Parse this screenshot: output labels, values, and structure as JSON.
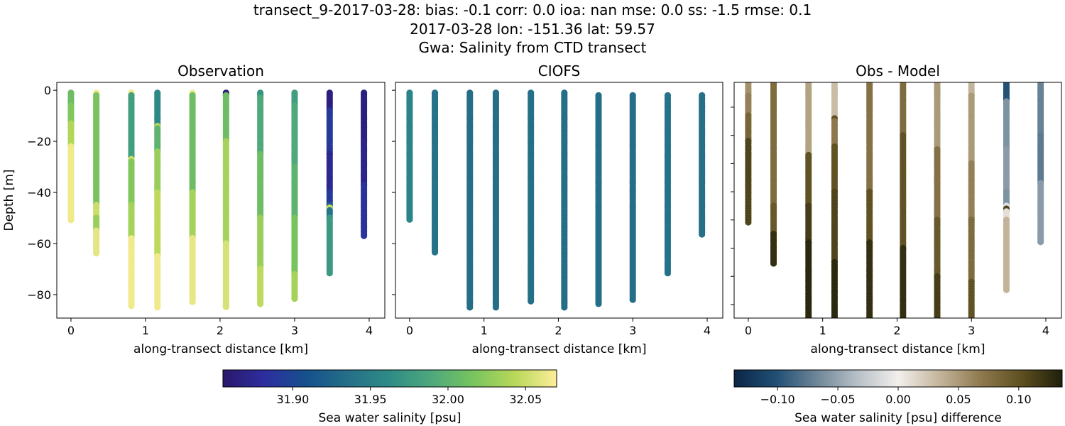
{
  "title_lines": [
    "transect_9-2017-03-28: bias: -0.1  corr: 0.0  ioa: nan  mse: 0.0  ss: -1.5  rmse: 0.1",
    "2017-03-28 lon: -151.36 lat: 59.57",
    "Gwa: Salinity from CTD transect"
  ],
  "colormaps": {
    "salinity": {
      "range": [
        31.855,
        32.07
      ],
      "stops": [
        "#2a186c",
        "#2d2e9e",
        "#16508d",
        "#256f88",
        "#2e8c86",
        "#4ea87c",
        "#78c45e",
        "#b8d85a",
        "#fdee99"
      ]
    },
    "difference": {
      "range": [
        -0.136,
        0.136
      ],
      "stops": [
        "#0b2545",
        "#1f4e74",
        "#6d8597",
        "#b7bfc6",
        "#f2efec",
        "#c4b69c",
        "#8f7a4f",
        "#5e5020",
        "#1f1f0a"
      ]
    }
  },
  "chart_data": [
    {
      "type": "scatter",
      "title": "Observation",
      "xlabel": "along-transect distance [km]",
      "ylabel": "Depth [m]",
      "xlim": [
        -0.19,
        4.21
      ],
      "ylim": [
        -89.2,
        3.1
      ],
      "xticks": [
        "0",
        "1",
        "2",
        "3",
        "4"
      ],
      "yticks": [
        "0",
        "−20",
        "−40",
        "−60",
        "−80"
      ],
      "colormap": "salinity",
      "stations": [
        {
          "x": 0.0,
          "segments": [
            [
              -1,
              -6,
              32.01
            ],
            [
              -6,
              -13,
              32.02
            ],
            [
              -13,
              -22,
              32.04
            ],
            [
              -22,
              -51,
              32.065
            ]
          ]
        },
        {
          "x": 0.34,
          "segments": [
            [
              -1,
              -2,
              32.065
            ],
            [
              -2,
              -45,
              32.015
            ],
            [
              -45,
              -50,
              32.05
            ],
            [
              -50,
              -55,
              32.03
            ],
            [
              -55,
              -64,
              32.06
            ]
          ]
        },
        {
          "x": 0.81,
          "segments": [
            [
              -1,
              -2,
              32.065
            ],
            [
              -2,
              -27,
              31.98
            ],
            [
              -27,
              -28,
              32.05
            ],
            [
              -28,
              -45,
              32.02
            ],
            [
              -45,
              -58,
              32.035
            ],
            [
              -58,
              -85,
              32.065
            ]
          ]
        },
        {
          "x": 1.16,
          "segments": [
            [
              -1,
              -14,
              31.96
            ],
            [
              -14,
              -15,
              32.04
            ],
            [
              -15,
              -24,
              32.0
            ],
            [
              -24,
              -40,
              32.03
            ],
            [
              -40,
              -65,
              32.045
            ],
            [
              -65,
              -85,
              32.065
            ]
          ]
        },
        {
          "x": 1.63,
          "segments": [
            [
              -1,
              -2,
              32.065
            ],
            [
              -2,
              -40,
              32.01
            ],
            [
              -40,
              -58,
              32.035
            ],
            [
              -58,
              -83,
              32.062
            ]
          ]
        },
        {
          "x": 2.08,
          "segments": [
            [
              -1,
              -2,
              31.86
            ],
            [
              -2,
              -20,
              32.01
            ],
            [
              -20,
              -60,
              32.035
            ],
            [
              -60,
              -85,
              32.055
            ]
          ]
        },
        {
          "x": 2.54,
          "segments": [
            [
              -1,
              -3,
              31.97
            ],
            [
              -3,
              -25,
              31.99
            ],
            [
              -25,
              -50,
              32.01
            ],
            [
              -50,
              -70,
              32.03
            ],
            [
              -70,
              -84,
              32.045
            ]
          ]
        },
        {
          "x": 3.0,
          "segments": [
            [
              -1,
              -6,
              31.98
            ],
            [
              -6,
              -30,
              31.99
            ],
            [
              -30,
              -50,
              32.0
            ],
            [
              -50,
              -72,
              32.015
            ],
            [
              -72,
              -82,
              32.035
            ]
          ]
        },
        {
          "x": 3.47,
          "segments": [
            [
              -1,
              -8,
              31.865
            ],
            [
              -8,
              -25,
              31.89
            ],
            [
              -25,
              -40,
              31.875
            ],
            [
              -40,
              -45,
              31.89
            ],
            [
              -45,
              -46,
              31.92
            ],
            [
              -46,
              -47,
              32.05
            ],
            [
              -47,
              -50,
              31.94
            ],
            [
              -50,
              -72,
              31.975
            ]
          ]
        },
        {
          "x": 3.93,
          "segments": [
            [
              -1,
              -20,
              31.865
            ],
            [
              -20,
              -37,
              31.87
            ],
            [
              -37,
              -57,
              31.885
            ]
          ]
        }
      ]
    },
    {
      "type": "scatter",
      "title": "CIOFS",
      "xlabel": "along-transect distance [km]",
      "xlim": [
        -0.19,
        4.21
      ],
      "ylim": [
        -89.2,
        3.1
      ],
      "xticks": [
        "0",
        "1",
        "2",
        "3",
        "4"
      ],
      "colormap": "salinity",
      "stations": [
        {
          "x": 0.0,
          "segments": [
            [
              -1,
              -51,
              31.955
            ]
          ]
        },
        {
          "x": 0.34,
          "segments": [
            [
              -1,
              -64,
              31.938
            ]
          ]
        },
        {
          "x": 0.81,
          "segments": [
            [
              -1,
              -85,
              31.935
            ]
          ]
        },
        {
          "x": 1.16,
          "segments": [
            [
              -1,
              -85,
              31.935
            ]
          ]
        },
        {
          "x": 1.63,
          "segments": [
            [
              -1,
              -83,
              31.937
            ]
          ]
        },
        {
          "x": 2.08,
          "segments": [
            [
              -1,
              -85,
              31.935
            ]
          ]
        },
        {
          "x": 2.54,
          "segments": [
            [
              -2,
              -84,
              31.935
            ]
          ]
        },
        {
          "x": 3.0,
          "segments": [
            [
              -2,
              -82,
              31.935
            ]
          ]
        },
        {
          "x": 3.47,
          "segments": [
            [
              -2,
              -72,
              31.938
            ]
          ]
        },
        {
          "x": 3.93,
          "segments": [
            [
              -2,
              -57,
              31.936
            ]
          ]
        }
      ]
    },
    {
      "type": "scatter",
      "title": "Obs - Model",
      "xlabel": "along-transect distance [km]",
      "xlim": [
        -0.19,
        4.21
      ],
      "ylim": [
        -84.8,
        -1.2
      ],
      "xticks": [
        "0",
        "1",
        "2",
        "3",
        "4"
      ],
      "colormap": "difference",
      "stations": [
        {
          "x": 0.0,
          "segments": [
            [
              -1,
              -6,
              0.055
            ],
            [
              -6,
              -13,
              0.065
            ],
            [
              -13,
              -22,
              0.085
            ],
            [
              -22,
              -51,
              0.11
            ]
          ]
        },
        {
          "x": 0.34,
          "segments": [
            [
              -1,
              -2,
              0.09
            ],
            [
              -2,
              -45,
              0.08
            ],
            [
              -45,
              -55,
              0.095
            ],
            [
              -55,
              -66,
              0.125
            ]
          ]
        },
        {
          "x": 0.81,
          "segments": [
            [
              -1,
              -27,
              0.045
            ],
            [
              -27,
              -28,
              0.1
            ],
            [
              -28,
              -45,
              0.1
            ],
            [
              -45,
              -58,
              0.115
            ],
            [
              -58,
              -88,
              0.13
            ]
          ]
        },
        {
          "x": 1.16,
          "segments": [
            [
              -1,
              -14,
              0.03
            ],
            [
              -14,
              -15,
              0.1
            ],
            [
              -15,
              -24,
              0.07
            ],
            [
              -24,
              -40,
              0.1
            ],
            [
              -40,
              -65,
              0.11
            ],
            [
              -65,
              -88,
              0.13
            ]
          ]
        },
        {
          "x": 1.63,
          "segments": [
            [
              -1,
              -2,
              0.06
            ],
            [
              -2,
              -40,
              0.075
            ],
            [
              -40,
              -58,
              0.1
            ],
            [
              -58,
              -87,
              0.125
            ]
          ]
        },
        {
          "x": 2.08,
          "segments": [
            [
              -1,
              -20,
              0.08
            ],
            [
              -20,
              -60,
              0.1
            ],
            [
              -60,
              -88,
              0.125
            ]
          ]
        },
        {
          "x": 2.54,
          "segments": [
            [
              -1,
              -25,
              0.05
            ],
            [
              -25,
              -50,
              0.075
            ],
            [
              -50,
              -70,
              0.095
            ],
            [
              -70,
              -88,
              0.115
            ]
          ]
        },
        {
          "x": 3.0,
          "segments": [
            [
              -1,
              -6,
              0.035
            ],
            [
              -6,
              -30,
              0.05
            ],
            [
              -30,
              -50,
              0.065
            ],
            [
              -50,
              -72,
              0.08
            ],
            [
              -72,
              -86,
              0.1
            ]
          ]
        },
        {
          "x": 3.47,
          "segments": [
            [
              -1,
              -8,
              -0.1
            ],
            [
              -8,
              -25,
              -0.06
            ],
            [
              -25,
              -40,
              -0.055
            ],
            [
              -40,
              -45,
              -0.06
            ],
            [
              -45,
              -46,
              -0.01
            ],
            [
              -46,
              -47,
              0.11
            ],
            [
              -47,
              -50,
              0.01
            ],
            [
              -50,
              -75,
              0.035
            ]
          ]
        },
        {
          "x": 3.93,
          "segments": [
            [
              -1,
              -20,
              -0.07
            ],
            [
              -20,
              -37,
              -0.075
            ],
            [
              -37,
              -58,
              -0.055
            ]
          ]
        }
      ]
    }
  ],
  "colorbars": [
    {
      "colormap": "salinity",
      "ticks": [
        31.9,
        31.95,
        32.0,
        32.05
      ],
      "tick_labels": [
        "31.90",
        "31.95",
        "32.00",
        "32.05"
      ],
      "label": "Sea water salinity [psu]"
    },
    {
      "colormap": "difference",
      "ticks": [
        -0.1,
        -0.05,
        0.0,
        0.05,
        0.1
      ],
      "tick_labels": [
        "−0.10",
        "−0.05",
        "0.00",
        "0.05",
        "0.10"
      ],
      "label": "Sea water salinity [psu] difference"
    }
  ]
}
